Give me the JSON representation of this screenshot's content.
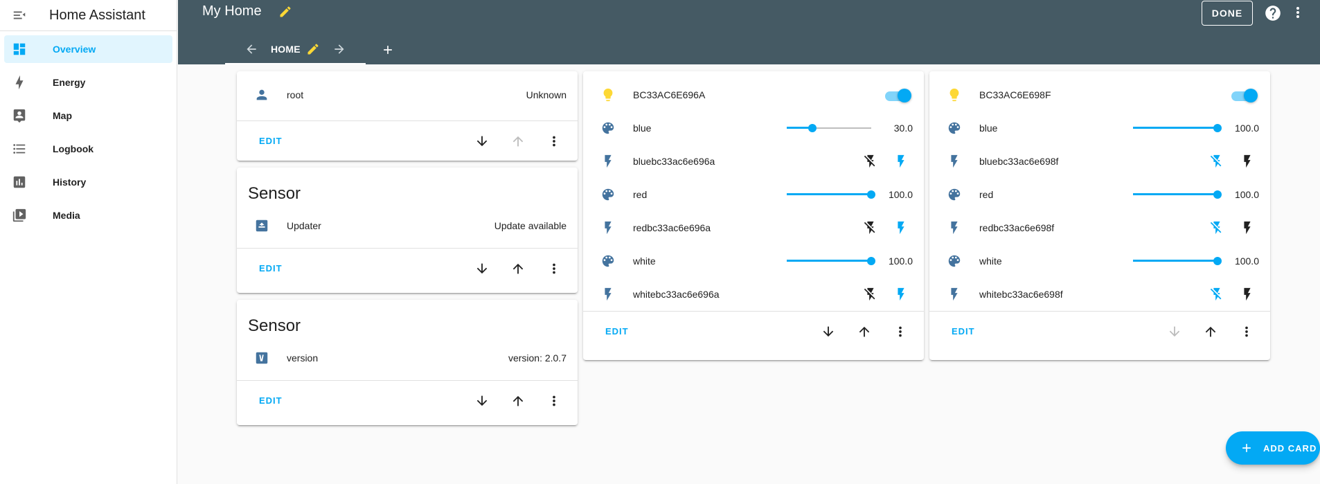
{
  "sidebar": {
    "title": "Home Assistant",
    "items": [
      {
        "label": "Overview",
        "icon": "view-dashboard-icon"
      },
      {
        "label": "Energy",
        "icon": "lightning-bolt-icon"
      },
      {
        "label": "Map",
        "icon": "map-account-icon"
      },
      {
        "label": "Logbook",
        "icon": "format-list-bulleted-icon"
      },
      {
        "label": "History",
        "icon": "chart-box-icon"
      },
      {
        "label": "Media",
        "icon": "play-box-multiple-icon"
      }
    ]
  },
  "header": {
    "title": "My Home",
    "done_label": "DONE",
    "tab_label": "HOME"
  },
  "cards": {
    "person": {
      "name": "root",
      "state": "Unknown",
      "edit": "EDIT"
    },
    "updater": {
      "title": "Sensor",
      "name": "Updater",
      "state": "Update available",
      "edit": "EDIT"
    },
    "version": {
      "title": "Sensor",
      "name": "version",
      "state": "version: 2.0.7",
      "edit": "EDIT"
    },
    "light_a": {
      "name": "BC33AC6E696A",
      "toggle_on": true,
      "rows": [
        {
          "name": "blue",
          "value": "30.0",
          "level": 0.3
        },
        {
          "name": "bluebc33ac6e696a"
        },
        {
          "name": "red",
          "value": "100.0",
          "level": 1.0
        },
        {
          "name": "redbc33ac6e696a"
        },
        {
          "name": "white",
          "value": "100.0",
          "level": 1.0
        },
        {
          "name": "whitebc33ac6e696a"
        }
      ],
      "edit": "EDIT"
    },
    "light_b": {
      "name": "BC33AC6E698F",
      "toggle_on": true,
      "rows": [
        {
          "name": "blue",
          "value": "100.0",
          "level": 1.0
        },
        {
          "name": "bluebc33ac6e698f"
        },
        {
          "name": "red",
          "value": "100.0",
          "level": 1.0
        },
        {
          "name": "redbc33ac6e698f"
        },
        {
          "name": "white",
          "value": "100.0",
          "level": 1.0
        },
        {
          "name": "whitebc33ac6e698f"
        }
      ],
      "edit": "EDIT"
    }
  },
  "fab": {
    "label": "ADD CARD"
  },
  "colors": {
    "primary": "#03a9f4",
    "header": "#455a64",
    "state_icon": "#44739e",
    "light_on": "#fdd835",
    "edit_pencil": "#fdd835"
  }
}
